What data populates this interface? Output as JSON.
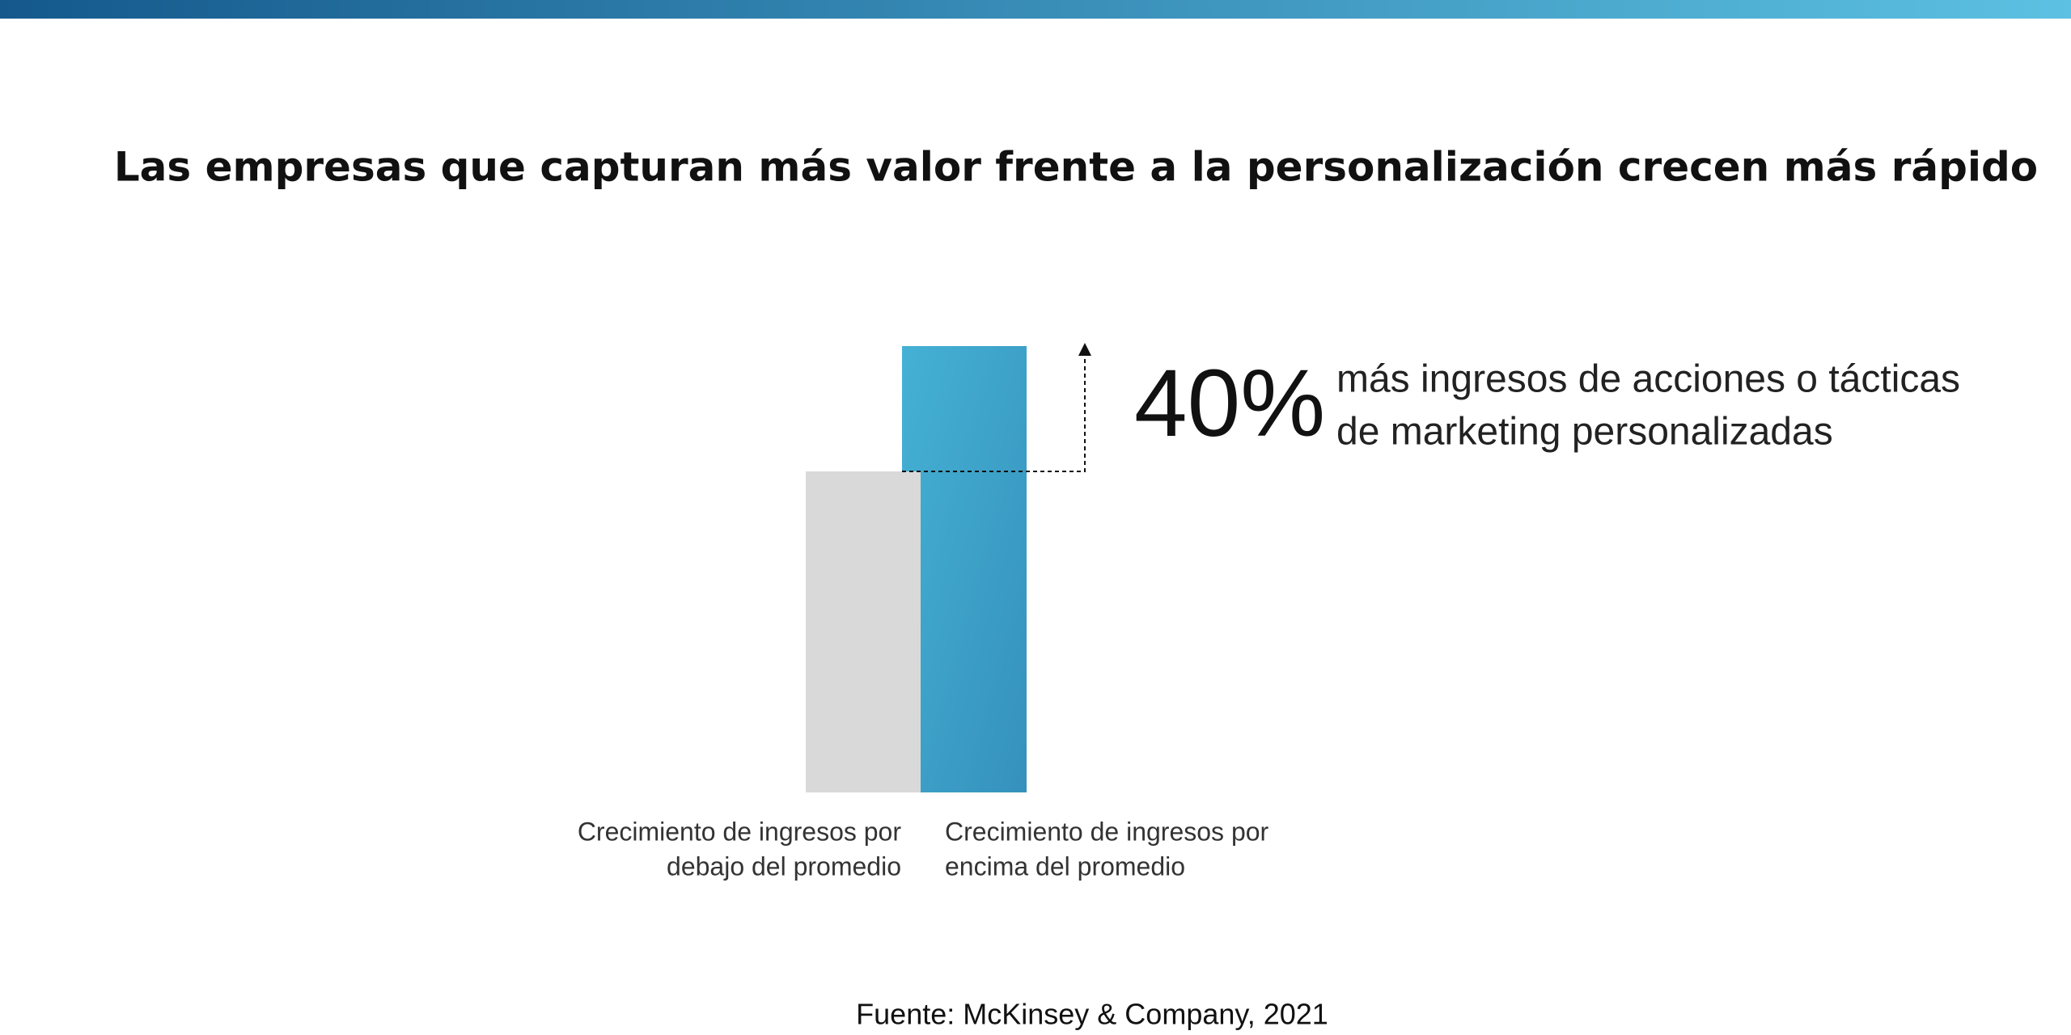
{
  "header": {
    "title": "Las empresas que capturan más valor frente a la personalización crecen más rápido"
  },
  "figure": {
    "bars": [
      {
        "label_lines": [
          "Crecimiento de ingresos por",
          "debajo del promedio"
        ]
      },
      {
        "label_lines": [
          "Crecimiento de ingresos por",
          "encima del promedio"
        ]
      }
    ],
    "annotation": {
      "value": "40%",
      "text_lines": [
        "más ingresos de acciones o tácticas",
        "de marketing personalizadas"
      ]
    }
  },
  "footer": {
    "source": "Fuente: McKinsey & Company, 2021"
  }
}
